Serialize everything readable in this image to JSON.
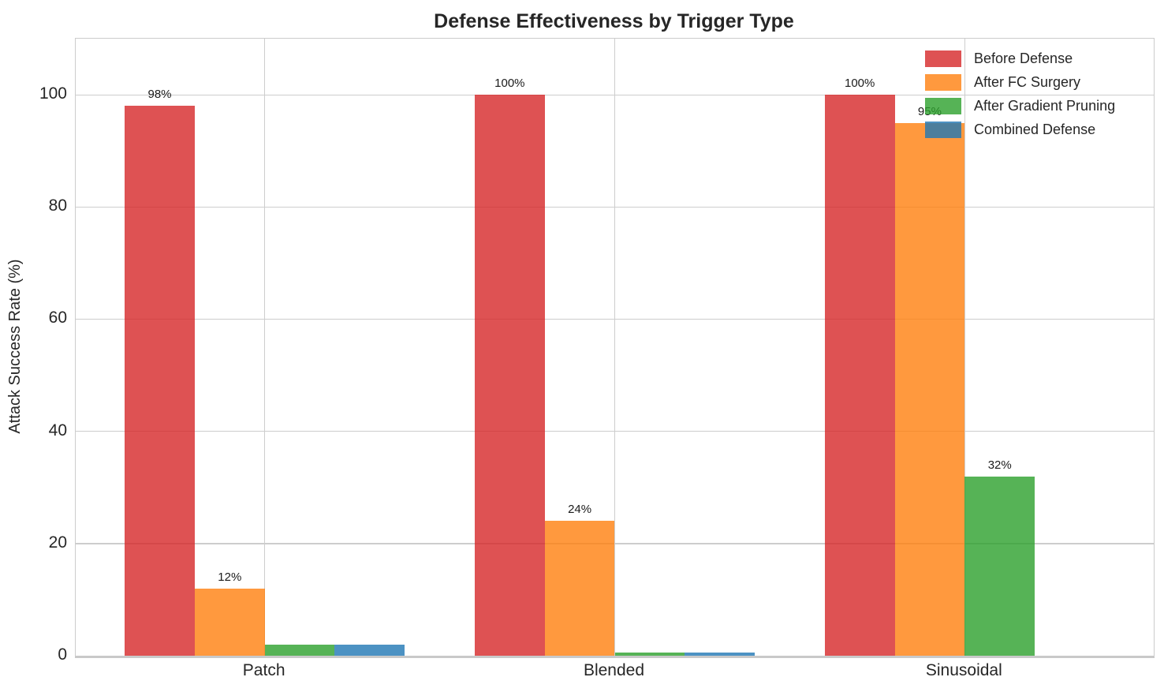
{
  "chart_data": {
    "type": "bar",
    "title": "Defense Effectiveness by Trigger Type",
    "xlabel": "",
    "ylabel": "Attack Success Rate (%)",
    "categories": [
      "Patch",
      "Blended",
      "Sinusoidal"
    ],
    "series": [
      {
        "name": "Before Defense",
        "color": "#d62728",
        "values": [
          98,
          100,
          100
        ],
        "bar_labels": [
          "98%",
          "100%",
          "100%"
        ]
      },
      {
        "name": "After FC Surgery",
        "color": "#ff7f0e",
        "values": [
          12,
          24,
          95
        ],
        "bar_labels": [
          "12%",
          "24%",
          "95%"
        ]
      },
      {
        "name": "After Gradient Pruning",
        "color": "#2ca02c",
        "values": [
          2,
          0.5,
          32
        ],
        "bar_labels": [
          "",
          "",
          "32%"
        ]
      },
      {
        "name": "Combined Defense",
        "color": "#1f77b4",
        "values": [
          2,
          0.5,
          0
        ],
        "bar_labels": [
          "",
          "",
          ""
        ]
      }
    ],
    "bar_alpha": 0.8,
    "ylim": [
      0,
      110
    ],
    "yticks": [
      0,
      20,
      40,
      60,
      80,
      100
    ],
    "grid": true,
    "grid_color": "#cdcdcd",
    "legend_position": "upper right",
    "text_color": "#262626"
  }
}
